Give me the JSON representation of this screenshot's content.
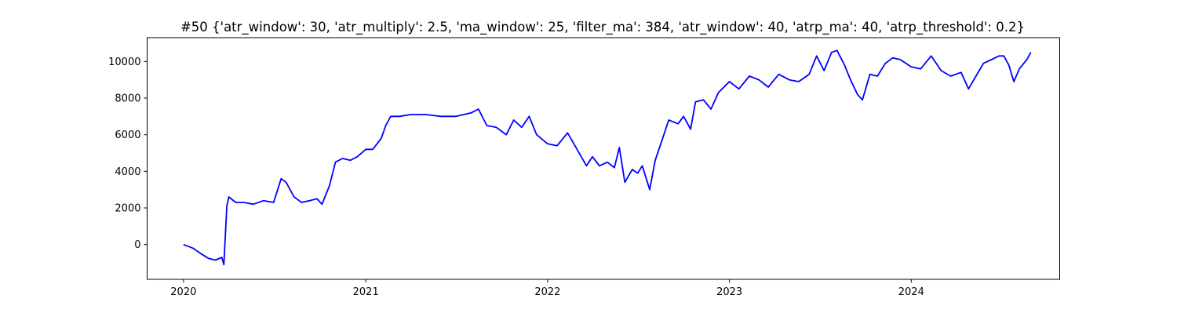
{
  "chart_data": {
    "type": "line",
    "title": "#50 {'atr_window': 30, 'atr_multiply': 2.5, 'ma_window': 25, 'filter_ma': 384, 'atr_window': 40, 'atrp_ma': 40, 'atrp_threshold': 0.2}",
    "xlabel": "",
    "ylabel": "",
    "xlim": [
      "2019-10-20",
      "2024-10-25"
    ],
    "ylim": [
      -1900,
      11300
    ],
    "x_ticks": [
      "2020",
      "2021",
      "2022",
      "2023",
      "2024"
    ],
    "y_ticks": [
      0,
      2000,
      4000,
      6000,
      8000,
      10000
    ],
    "grid": false,
    "series": [
      {
        "color": "#0000ff",
        "x": [
          "2020-01-01",
          "2020-01-20",
          "2020-02-05",
          "2020-02-20",
          "2020-03-05",
          "2020-03-18",
          "2020-03-22",
          "2020-03-28",
          "2020-04-01",
          "2020-04-15",
          "2020-05-01",
          "2020-05-20",
          "2020-06-10",
          "2020-06-30",
          "2020-07-15",
          "2020-07-25",
          "2020-08-10",
          "2020-08-25",
          "2020-09-10",
          "2020-09-25",
          "2020-10-05",
          "2020-10-20",
          "2020-11-01",
          "2020-11-15",
          "2020-12-01",
          "2020-12-15",
          "2021-01-01",
          "2021-01-15",
          "2021-02-01",
          "2021-02-10",
          "2021-02-20",
          "2021-03-10",
          "2021-04-01",
          "2021-05-01",
          "2021-06-01",
          "2021-07-01",
          "2021-08-01",
          "2021-08-15",
          "2021-09-01",
          "2021-09-20",
          "2021-10-10",
          "2021-10-25",
          "2021-11-10",
          "2021-11-25",
          "2021-12-10",
          "2022-01-01",
          "2022-01-20",
          "2022-02-10",
          "2022-03-01",
          "2022-03-20",
          "2022-04-01",
          "2022-04-15",
          "2022-05-01",
          "2022-05-15",
          "2022-05-25",
          "2022-06-05",
          "2022-06-20",
          "2022-07-01",
          "2022-07-10",
          "2022-07-25",
          "2022-08-05",
          "2022-08-20",
          "2022-09-01",
          "2022-09-20",
          "2022-10-01",
          "2022-10-15",
          "2022-10-25",
          "2022-11-10",
          "2022-11-25",
          "2022-12-10",
          "2023-01-01",
          "2023-01-20",
          "2023-02-10",
          "2023-03-01",
          "2023-03-20",
          "2023-04-10",
          "2023-05-01",
          "2023-05-20",
          "2023-06-10",
          "2023-06-25",
          "2023-07-10",
          "2023-07-25",
          "2023-08-05",
          "2023-08-20",
          "2023-09-01",
          "2023-09-15",
          "2023-09-25",
          "2023-10-10",
          "2023-10-25",
          "2023-11-10",
          "2023-11-25",
          "2023-12-10",
          "2024-01-01",
          "2024-01-20",
          "2024-02-10",
          "2024-03-01",
          "2024-03-20",
          "2024-04-10",
          "2024-04-25",
          "2024-05-10",
          "2024-05-25",
          "2024-06-10",
          "2024-06-25",
          "2024-07-05",
          "2024-07-15",
          "2024-07-25",
          "2024-08-05",
          "2024-08-20",
          "2024-08-28"
        ],
        "y": [
          0,
          -200,
          -500,
          -750,
          -850,
          -700,
          -1100,
          2100,
          2600,
          2300,
          2300,
          2200,
          2400,
          2300,
          3600,
          3400,
          2600,
          2300,
          2400,
          2500,
          2200,
          3200,
          4500,
          4700,
          4600,
          4800,
          5200,
          5200,
          5800,
          6500,
          7000,
          7000,
          7100,
          7100,
          7000,
          7000,
          7200,
          7400,
          6500,
          6400,
          6000,
          6800,
          6400,
          7000,
          6000,
          5500,
          5400,
          6100,
          5200,
          4300,
          4800,
          4300,
          4500,
          4200,
          5300,
          3400,
          4100,
          3900,
          4300,
          3000,
          4600,
          5800,
          6800,
          6600,
          7000,
          6300,
          7800,
          7900,
          7400,
          8300,
          8900,
          8500,
          9200,
          9000,
          8600,
          9300,
          9000,
          8900,
          9300,
          10300,
          9500,
          10500,
          10600,
          9800,
          9000,
          8200,
          7900,
          9300,
          9200,
          9900,
          10200,
          10100,
          9700,
          9600,
          10300,
          9500,
          9200,
          9400,
          8500,
          9200,
          9900,
          10100,
          10300,
          10300,
          9800,
          8900,
          9600,
          10100,
          10500
        ]
      }
    ]
  }
}
